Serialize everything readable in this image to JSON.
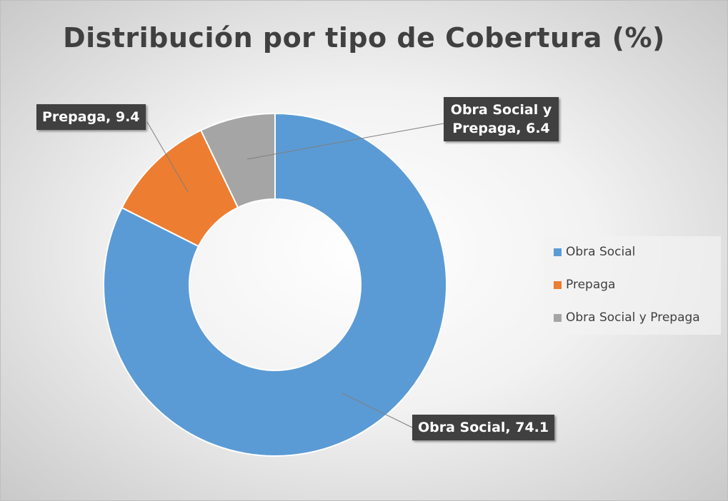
{
  "chart_data": {
    "type": "donut",
    "title": "Distribución por tipo de Cobertura (%)",
    "categories": [
      "Obra Social",
      "Prepaga",
      "Obra Social y Prepaga"
    ],
    "values": [
      74.1,
      9.4,
      6.4
    ],
    "value_labels": [
      "Obra Social, 74.1",
      "Prepaga, 9.4",
      "Obra Social y Prepaga, 6.4"
    ],
    "colors": [
      "#5b9bd5",
      "#ed7d31",
      "#a5a5a5"
    ],
    "legend": "right"
  }
}
